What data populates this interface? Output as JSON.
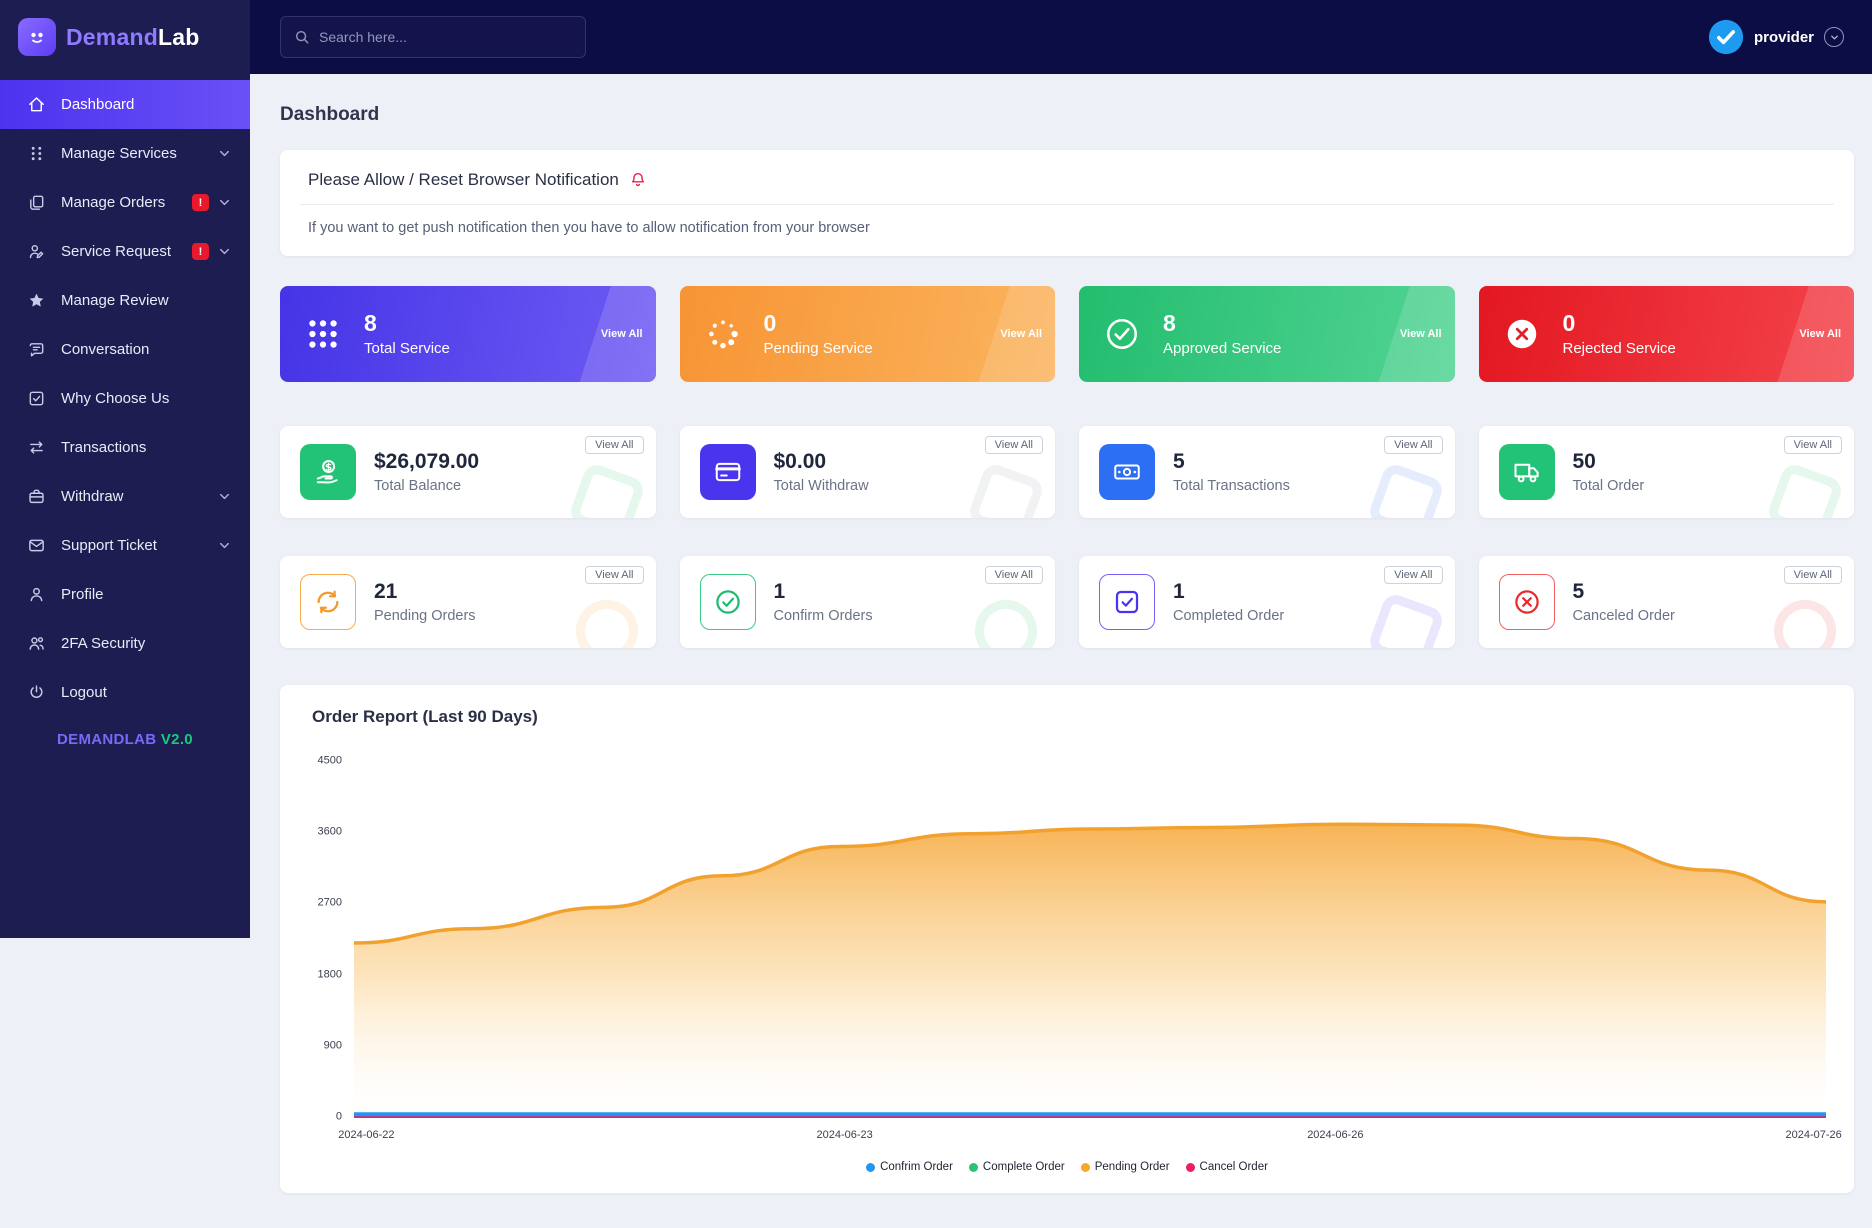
{
  "brand": {
    "name_part1": "Demand",
    "name_part2": "Lab",
    "version_name": "DEMANDLAB",
    "version_number": "V2.0"
  },
  "header": {
    "search_placeholder": "Search here...",
    "user_name": "provider"
  },
  "sidebar": {
    "items": [
      {
        "label": "Dashboard",
        "active": true
      },
      {
        "label": "Manage Services",
        "chevron": true
      },
      {
        "label": "Manage Orders",
        "badge": "!",
        "chevron": true
      },
      {
        "label": "Service Request",
        "badge": "!",
        "chevron": true
      },
      {
        "label": "Manage Review"
      },
      {
        "label": "Conversation"
      },
      {
        "label": "Why Choose Us"
      },
      {
        "label": "Transactions"
      },
      {
        "label": "Withdraw",
        "chevron": true
      },
      {
        "label": "Support Ticket",
        "chevron": true
      },
      {
        "label": "Profile"
      },
      {
        "label": "2FA Security"
      },
      {
        "label": "Logout"
      }
    ]
  },
  "page": {
    "title": "Dashboard"
  },
  "notification": {
    "title": "Please Allow / Reset Browser Notification",
    "body": "If you want to get push notification then you have to allow notification from your browser"
  },
  "stat_cards": [
    {
      "value": "8",
      "label": "Total Service",
      "action": "View All",
      "color": "#4534e6"
    },
    {
      "value": "0",
      "label": "Pending Service",
      "action": "View All",
      "color": "#f79434"
    },
    {
      "value": "8",
      "label": "Approved Service",
      "action": "View All",
      "color": "#23bd6e"
    },
    {
      "value": "0",
      "label": "Rejected Service",
      "action": "View All",
      "color": "#e31721"
    }
  ],
  "summary_cards": [
    {
      "value": "$26,079.00",
      "label": "Total Balance",
      "action": "View All",
      "color": "#22c376"
    },
    {
      "value": "$0.00",
      "label": "Total Withdraw",
      "action": "View All",
      "color": "#4b34ee"
    },
    {
      "value": "5",
      "label": "Total Transactions",
      "action": "View All",
      "color": "#2d6ff2"
    },
    {
      "value": "50",
      "label": "Total Order",
      "action": "View All",
      "color": "#22c376"
    }
  ],
  "order_cards": [
    {
      "value": "21",
      "label": "Pending Orders",
      "action": "View All",
      "color": "#f4992b"
    },
    {
      "value": "1",
      "label": "Confirm Orders",
      "action": "View All",
      "color": "#1fbc70"
    },
    {
      "value": "1",
      "label": "Completed Order",
      "action": "View All",
      "color": "#4b34ee"
    },
    {
      "value": "5",
      "label": "Canceled Order",
      "action": "View All",
      "color": "#e82b2b"
    }
  ],
  "chart_data": {
    "type": "area",
    "title": "Order Report (Last 90 Days)",
    "x_labels": [
      "2024-06-22",
      "2024-06-23",
      "2024-06-26",
      "2024-07-26"
    ],
    "y_ticks": [
      0,
      900,
      1800,
      2700,
      3600,
      4500
    ],
    "ylim": [
      0,
      4500
    ],
    "grid": false,
    "legend_position": "bottom",
    "legend": [
      {
        "label": "Confrim Order",
        "color": "#2196f3"
      },
      {
        "label": "Complete Order",
        "color": "#2ec277"
      },
      {
        "label": "Pending Order",
        "color": "#f5a82c"
      },
      {
        "label": "Cancel Order",
        "color": "#ec1f63"
      }
    ],
    "series": [
      {
        "name": "Pending Order",
        "color": "#f2a12e",
        "fill": true,
        "width": 3.5,
        "x": [
          0,
          0.08,
          0.17,
          0.25,
          0.33,
          0.42,
          0.5,
          0.58,
          0.67,
          0.75,
          0.83,
          0.92,
          1
        ],
        "values": [
          2200,
          2380,
          2650,
          3050,
          3420,
          3580,
          3640,
          3660,
          3700,
          3690,
          3520,
          3120,
          2720
        ]
      },
      {
        "name": "Complete Order",
        "color": "#2ec277",
        "fill": false,
        "width": 2,
        "x": [
          0,
          1
        ],
        "values": [
          0,
          0
        ]
      },
      {
        "name": "Cancel Order",
        "color": "#ec1f63",
        "fill": false,
        "width": 2,
        "x": [
          0,
          1
        ],
        "values": [
          0,
          0
        ]
      },
      {
        "name": "Confrim Order",
        "color": "#2196f3",
        "fill": false,
        "width": 4,
        "x": [
          0,
          1
        ],
        "values": [
          35,
          35
        ]
      }
    ]
  }
}
